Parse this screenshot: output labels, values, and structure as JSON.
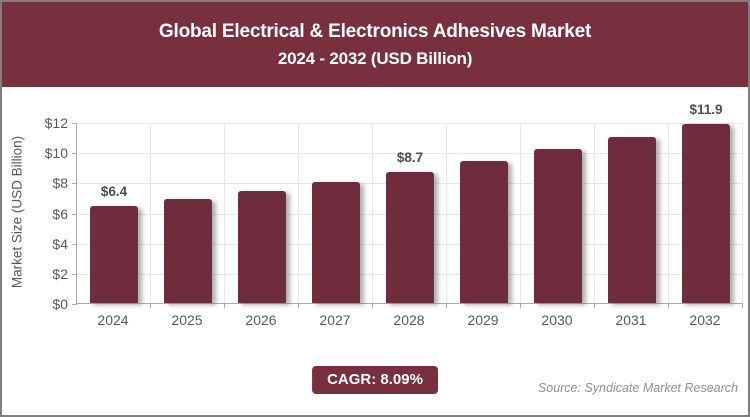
{
  "header": {
    "title_line1": "Global Electrical & Electronics Adhesives Market",
    "title_line2": "2024 - 2032 (USD Billion)"
  },
  "chart_data": {
    "type": "bar",
    "title": "Global Electrical & Electronics Adhesives Market 2024 - 2032 (USD Billion)",
    "categories": [
      "2024",
      "2025",
      "2026",
      "2027",
      "2028",
      "2029",
      "2030",
      "2031",
      "2032"
    ],
    "values": [
      6.4,
      6.9,
      7.4,
      8.0,
      8.7,
      9.4,
      10.2,
      11.0,
      11.9
    ],
    "data_labels": [
      "$6.4",
      "",
      "",
      "",
      "$8.7",
      "",
      "",
      "",
      "$11.9"
    ],
    "xlabel": "",
    "ylabel": "Market Size (USD Billion)",
    "ylim": [
      0,
      12
    ],
    "ytick_values": [
      0,
      2,
      4,
      6,
      8,
      10,
      12
    ],
    "ytick_labels": [
      "$0",
      "$2",
      "$4",
      "$6",
      "$8",
      "$10",
      "$12"
    ],
    "grid": true,
    "legend": false,
    "bar_color": "#6e2c3c"
  },
  "footer": {
    "cagr_label": "CAGR: 8.09%",
    "source": "Source: Syndicate Market Research"
  },
  "colors": {
    "banner_background": "#78303f",
    "badge_background": "#78303f",
    "bar": "#6e2c3c",
    "grid_line": "#e7e7e7",
    "axis_line": "#ababab",
    "tick_text": "#595959",
    "value_label_text": "#4d4d4d",
    "title_text": "#ffffff",
    "source_text": "#8a9298",
    "frame_border": "#7f7f7f"
  }
}
